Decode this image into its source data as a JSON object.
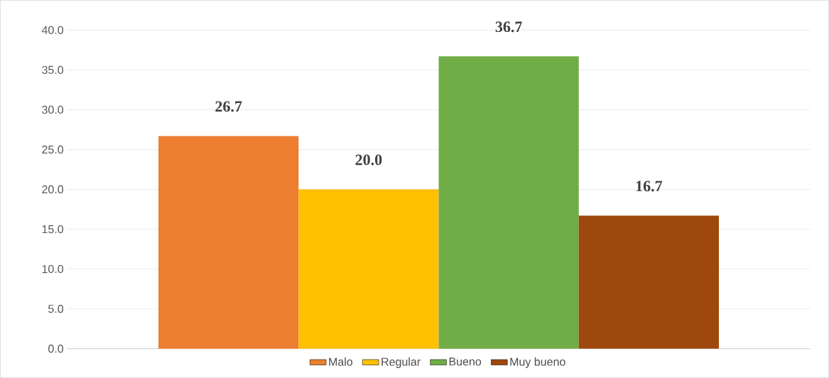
{
  "chart_data": {
    "type": "bar",
    "categories": [
      null
    ],
    "series": [
      {
        "name": "Malo",
        "color": "#ed7d31",
        "values": [
          26.7
        ],
        "value_labels": [
          "26.7"
        ]
      },
      {
        "name": "Regular",
        "color": "#ffc000",
        "values": [
          20.0
        ],
        "value_labels": [
          "20.0"
        ]
      },
      {
        "name": "Bueno",
        "color": "#70ad47",
        "values": [
          36.7
        ],
        "value_labels": [
          "36.7"
        ]
      },
      {
        "name": "Muy bueno",
        "color": "#9e480e",
        "values": [
          16.7
        ],
        "value_labels": [
          "16.7"
        ]
      }
    ],
    "ylim": [
      0,
      40
    ],
    "yticks": [
      {
        "value": 0,
        "label": "0.0"
      },
      {
        "value": 5,
        "label": "5.0"
      },
      {
        "value": 10,
        "label": "10.0"
      },
      {
        "value": 15,
        "label": "15.0"
      },
      {
        "value": 20,
        "label": "20.0"
      },
      {
        "value": 25,
        "label": "25.0"
      },
      {
        "value": 30,
        "label": "30.0"
      },
      {
        "value": 35,
        "label": "35.0"
      },
      {
        "value": 40,
        "label": "40.0"
      }
    ],
    "grid": "y",
    "legend": "bottom"
  }
}
